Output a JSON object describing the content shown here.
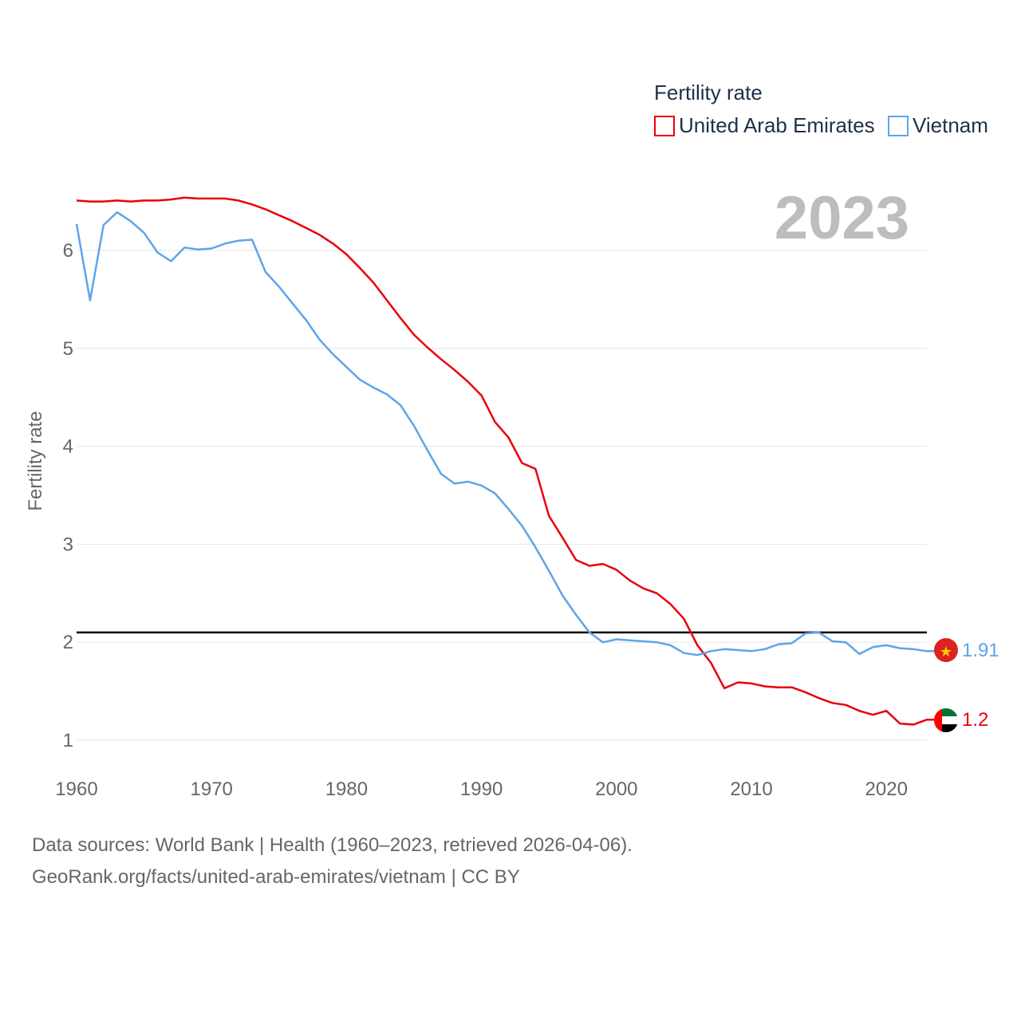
{
  "chart_data": {
    "type": "line",
    "ylabel": "Fertility rate",
    "xlabel": "",
    "legend_title": "Fertility rate",
    "legend_position": "top-right",
    "current_year": "2023",
    "xlim": [
      1960,
      2023
    ],
    "ylim": [
      0.5,
      6.9
    ],
    "x_ticks": [
      "1960",
      "1970",
      "1980",
      "1990",
      "2000",
      "2010",
      "2020"
    ],
    "y_ticks": [
      "1",
      "2",
      "3",
      "4",
      "5",
      "6"
    ],
    "reference_line": 2.1,
    "years": [
      1960,
      1961,
      1962,
      1963,
      1964,
      1965,
      1966,
      1967,
      1968,
      1969,
      1970,
      1971,
      1972,
      1973,
      1974,
      1975,
      1976,
      1977,
      1978,
      1979,
      1980,
      1981,
      1982,
      1983,
      1984,
      1985,
      1986,
      1987,
      1988,
      1989,
      1990,
      1991,
      1992,
      1993,
      1994,
      1995,
      1996,
      1997,
      1998,
      1999,
      2000,
      2001,
      2002,
      2003,
      2004,
      2005,
      2006,
      2007,
      2008,
      2009,
      2010,
      2011,
      2012,
      2013,
      2014,
      2015,
      2016,
      2017,
      2018,
      2019,
      2020,
      2021,
      2022,
      2023
    ],
    "series": [
      {
        "name": "United Arab Emirates",
        "color": "#e8000b",
        "end_label": "1.2",
        "flag": "uae",
        "values": [
          6.51,
          6.5,
          6.5,
          6.51,
          6.5,
          6.51,
          6.51,
          6.52,
          6.54,
          6.53,
          6.53,
          6.53,
          6.51,
          6.47,
          6.42,
          6.36,
          6.3,
          6.23,
          6.16,
          6.07,
          5.96,
          5.82,
          5.67,
          5.49,
          5.31,
          5.14,
          5.01,
          4.89,
          4.78,
          4.66,
          4.52,
          4.25,
          4.09,
          3.83,
          3.77,
          3.29,
          3.07,
          2.84,
          2.78,
          2.8,
          2.74,
          2.63,
          2.55,
          2.5,
          2.39,
          2.24,
          1.97,
          1.79,
          1.53,
          1.59,
          1.58,
          1.55,
          1.54,
          1.54,
          1.49,
          1.43,
          1.38,
          1.36,
          1.3,
          1.26,
          1.3,
          1.17,
          1.16,
          1.21
        ]
      },
      {
        "name": "Vietnam",
        "color": "#5da5e8",
        "end_label": "1.91",
        "flag": "vietnam",
        "values": [
          6.27,
          5.49,
          6.26,
          6.39,
          6.3,
          6.18,
          5.98,
          5.89,
          6.03,
          6.01,
          6.02,
          6.07,
          6.1,
          6.11,
          5.78,
          5.63,
          5.46,
          5.29,
          5.09,
          4.94,
          4.81,
          4.68,
          4.6,
          4.53,
          4.42,
          4.21,
          3.96,
          3.72,
          3.62,
          3.64,
          3.6,
          3.52,
          3.36,
          3.19,
          2.97,
          2.73,
          2.48,
          2.28,
          2.1,
          2.0,
          2.03,
          2.02,
          2.01,
          2.0,
          1.97,
          1.89,
          1.87,
          1.91,
          1.93,
          1.92,
          1.91,
          1.93,
          1.98,
          1.99,
          2.09,
          2.1,
          2.01,
          2.0,
          1.88,
          1.95,
          1.97,
          1.94,
          1.93,
          1.91
        ]
      }
    ]
  },
  "footer": {
    "line1": "Data sources: World Bank | Health (1960–2023, retrieved 2026-04-06).",
    "line2": "GeoRank.org/facts/united-arab-emirates/vietnam | CC BY"
  },
  "colors": {
    "grid": "#e6e6e6",
    "reference": "#000000",
    "text": "#666666",
    "legend_text": "#1f3047",
    "year_watermark": "#bdbdbd"
  }
}
